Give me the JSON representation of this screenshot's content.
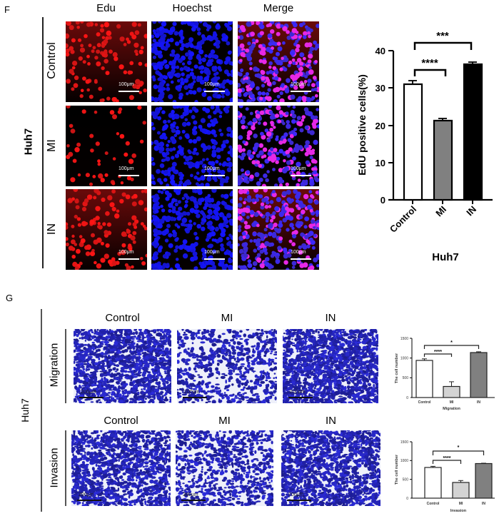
{
  "panel_F": {
    "letter": "F",
    "group_label": "Huh7",
    "columns": [
      "Edu",
      "Hoechst",
      "Merge"
    ],
    "rows": [
      "Control",
      "MI",
      "IN"
    ],
    "scale_label": "100μm"
  },
  "panel_G": {
    "letter": "G",
    "group_label": "Huh7",
    "columns": [
      "Control",
      "MI",
      "IN"
    ],
    "rows": [
      "Migration",
      "Invasion"
    ],
    "scale_label": "200μm"
  },
  "chart_data": [
    {
      "id": "F-edu",
      "type": "bar",
      "title": "",
      "categories": [
        "Control",
        "MI",
        "IN"
      ],
      "values": [
        30.8,
        21.2,
        36.2
      ],
      "errors": [
        1.0,
        0.6,
        0.6
      ],
      "bar_colors": [
        "#ffffff",
        "#808080",
        "#000000"
      ],
      "xlabel": "Huh7",
      "ylabel": "EdU positive cells(%)",
      "ylim": [
        0,
        40
      ],
      "yticks": [
        0,
        10,
        20,
        30,
        40
      ],
      "significance": [
        {
          "from": "Control",
          "to": "MI",
          "label": "****"
        },
        {
          "from": "Control",
          "to": "IN",
          "label": "***"
        }
      ],
      "grid": false
    },
    {
      "id": "G-migration",
      "type": "bar",
      "title": "",
      "categories": [
        "Control",
        "MI",
        "IN"
      ],
      "values": [
        940,
        280,
        1140
      ],
      "errors": [
        40,
        120,
        20
      ],
      "bar_colors": [
        "#ffffff",
        "#d3d3d3",
        "#808080"
      ],
      "xlabel": "Migration",
      "ylabel": "The cell number",
      "ylim": [
        0,
        1500
      ],
      "yticks": [
        0,
        500,
        1000,
        1500
      ],
      "significance": [
        {
          "from": "Control",
          "to": "MI",
          "label": "****"
        },
        {
          "from": "Control",
          "to": "IN",
          "label": "*"
        }
      ],
      "grid": false
    },
    {
      "id": "G-invasion",
      "type": "bar",
      "title": "",
      "categories": [
        "Control",
        "MI",
        "IN"
      ],
      "values": [
        810,
        420,
        920
      ],
      "errors": [
        30,
        50,
        10
      ],
      "bar_colors": [
        "#ffffff",
        "#d3d3d3",
        "#808080"
      ],
      "xlabel": "Invasion",
      "ylabel": "The cell number",
      "ylim": [
        0,
        1500
      ],
      "yticks": [
        0,
        500,
        1000,
        1500
      ],
      "significance": [
        {
          "from": "Control",
          "to": "MI",
          "label": "****"
        },
        {
          "from": "Control",
          "to": "IN",
          "label": "*"
        }
      ],
      "grid": false
    }
  ]
}
